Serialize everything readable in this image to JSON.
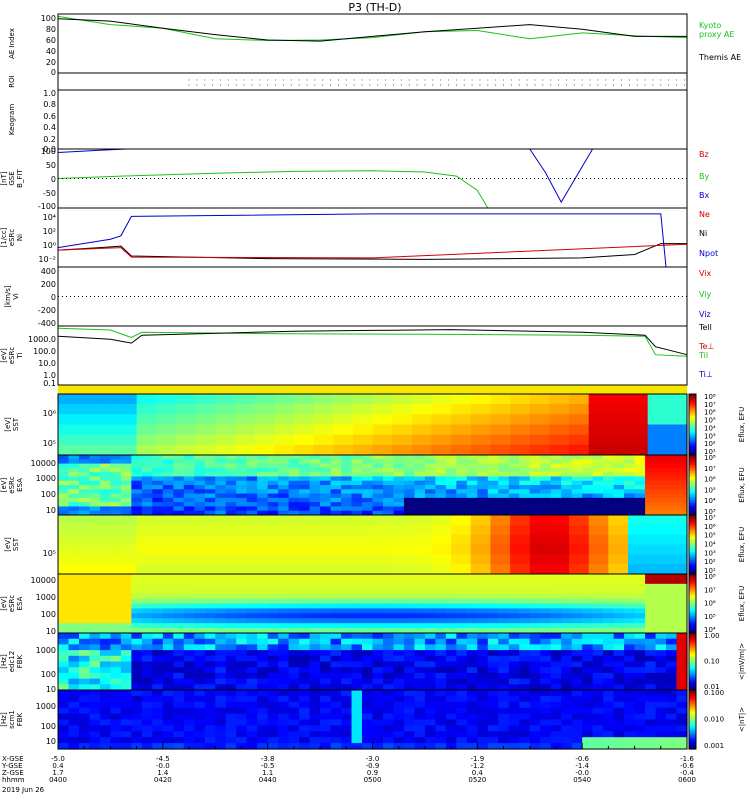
{
  "title": "P3 (TH-D)",
  "colors": {
    "black": "#000000",
    "red": "#d40000",
    "green": "#18c418",
    "blue": "#0000d0"
  },
  "time_axis": {
    "ticks": [
      "0400",
      "0420",
      "0440",
      "0500",
      "0520",
      "0540",
      "0600"
    ],
    "row_labels": [
      "X-GSE",
      "Y-GSE",
      "Z-GSE",
      "hhmm"
    ],
    "x_gse": [
      "-5.0",
      "-4.5",
      "-3.8",
      "-3.0",
      "-1.9",
      "-0.6",
      "-1.6"
    ],
    "y_gse": [
      "0.4",
      "-0.0",
      "-0.5",
      "-0.9",
      "-1.2",
      "-1.4",
      "-0.6"
    ],
    "z_gse": [
      "1.7",
      "1.4",
      "1.1",
      "0.9",
      "0.4",
      "-0.0",
      "-0.4"
    ],
    "date": "2019 Jun 26"
  },
  "panels": {
    "ae": {
      "ylabel": "AE Index",
      "ticks": [
        "100",
        "80",
        "60",
        "40",
        "20",
        "0"
      ],
      "right": [
        "Kyoto",
        "proxy AE",
        "Themis AE"
      ]
    },
    "roi": {
      "ylabel": "ROI"
    },
    "keo": {
      "ylabel": "Keogram",
      "ticks": [
        "1.0",
        "0.8",
        "0.6",
        "0.4",
        "0.2",
        "0.0"
      ]
    },
    "bfit": {
      "ylabel": "B_FIT",
      "units": "GSE",
      "unit2": "[nT]",
      "ticks": [
        "100",
        "50",
        "0",
        "-50",
        "-100"
      ],
      "right": [
        "Bz",
        "By",
        "Bx"
      ]
    },
    "ni": {
      "ylabel": "Ni",
      "sub": "eSRc",
      "units": "[1/cc]",
      "ticks": [
        "10⁴",
        "10²",
        "10⁰",
        "10⁻²"
      ],
      "right": [
        "Ne",
        "Ni",
        "Npot"
      ]
    },
    "vi": {
      "ylabel": "Vi",
      "units": "[km/s]",
      "ticks": [
        "400",
        "200",
        "0",
        "-200",
        "-400"
      ],
      "right": [
        "Vix",
        "Viy",
        "Viz"
      ]
    },
    "ti": {
      "ylabel": "Ti",
      "sub": "eSRc",
      "units": "[eV]",
      "ticks": [
        "1000.0",
        "100.0",
        "10.0",
        "1.0",
        "0.1"
      ],
      "right": [
        "Tell",
        "Te⊥",
        "Til",
        "Ti⊥"
      ]
    },
    "sst_e": {
      "ylabel": "SST",
      "units": "[eV]",
      "ticks": [
        "10⁶",
        "10⁵"
      ]
    },
    "esa_e": {
      "ylabel": "ESA",
      "sub": "eSRc",
      "units": "[eV]",
      "ticks": [
        "10000",
        "1000",
        "100",
        "10"
      ]
    },
    "sst_i": {
      "ylabel": "SST",
      "units": "[eV]",
      "ticks": [
        "10⁵"
      ]
    },
    "esa_i": {
      "ylabel": "ESA",
      "sub": "eSRc",
      "units": "[eV]",
      "ticks": [
        "10000",
        "1000",
        "100",
        "10"
      ]
    },
    "fbk_e": {
      "ylabel": "FBK",
      "sub": "edc12",
      "units": "[Hz]",
      "ticks": [
        "1000",
        "100",
        "10"
      ]
    },
    "fbk_b": {
      "ylabel": "FBK",
      "sub": "scm1",
      "units": "[Hz]",
      "ticks": [
        "1000",
        "100",
        "10"
      ]
    }
  },
  "colorbars": [
    {
      "ticks": [
        "10⁸",
        "10⁷",
        "10⁶",
        "10⁵",
        "10⁴",
        "10³",
        "10²",
        "10¹"
      ],
      "label": "Eflux, EFU"
    },
    {
      "ticks": [
        "10⁸",
        "10⁷",
        "10⁶",
        "10⁵",
        "10⁴",
        "10³"
      ],
      "label": "Eflux, EFU"
    },
    {
      "ticks": [
        "10⁷",
        "10⁶",
        "10⁵",
        "10⁴",
        "10³",
        "10²",
        "10¹"
      ],
      "label": "Eflux, EFU"
    },
    {
      "ticks": [
        "10⁸",
        "10⁷",
        "10⁶",
        "10⁵",
        "10⁴"
      ],
      "label": "Eflux, EFU"
    },
    {
      "ticks": [
        "1.00",
        "0.10",
        "0.01"
      ],
      "label": "<|mV/m|>"
    },
    {
      "ticks": [
        "0.100",
        "0.010",
        "0.001"
      ],
      "label": "<|nT|>"
    }
  ],
  "chart_data": {
    "type": "line",
    "title": "P3 (TH-D)",
    "x_range": [
      "04:00",
      "06:00"
    ],
    "ae_index": {
      "ylim": [
        0,
        100
      ],
      "x_min": [
        0,
        10,
        20,
        30,
        40,
        50,
        60,
        70,
        80,
        90,
        100,
        110,
        120
      ],
      "series": [
        {
          "name": "Kyoto proxy AE",
          "values": [
            96,
            82,
            76,
            58,
            55,
            56,
            60,
            70,
            72,
            58,
            68,
            63,
            60
          ]
        },
        {
          "name": "Themis AE",
          "values": [
            92,
            88,
            76,
            65,
            56,
            54,
            62,
            70,
            76,
            82,
            74,
            62,
            62
          ]
        }
      ]
    },
    "b_fit_gse_nT": {
      "ylim": [
        -100,
        100
      ],
      "series": [
        {
          "name": "By",
          "x_min": [
            0,
            15,
            30,
            45,
            60,
            70,
            76,
            80,
            82
          ],
          "values": [
            0,
            10,
            18,
            24,
            26,
            22,
            8,
            -40,
            -100
          ]
        },
        {
          "name": "Bx",
          "x_min": [
            0,
            4,
            8,
            13
          ],
          "values": [
            88,
            92,
            96,
            100
          ]
        },
        {
          "name": "Bx",
          "x_min": [
            90,
            93,
            96,
            99,
            102
          ],
          "values": [
            100,
            20,
            -80,
            10,
            100
          ]
        }
      ]
    },
    "density_cc": {
      "scale": "log",
      "ylim": [
        0.01,
        100000
      ],
      "series": [
        {
          "name": "Ni",
          "x_min": [
            0,
            8,
            12,
            14,
            40,
            70,
            100,
            110,
            115,
            120
          ],
          "values": [
            1,
            2,
            3,
            0.2,
            0.1,
            0.08,
            0.12,
            0.3,
            6,
            6
          ]
        },
        {
          "name": "Ne",
          "x_min": [
            0,
            12,
            14,
            60,
            120
          ],
          "values": [
            1,
            2,
            0.15,
            0.12,
            5
          ]
        },
        {
          "name": "Npot",
          "x_min": [
            0,
            10,
            12,
            14,
            60,
            115,
            116,
            118
          ],
          "values": [
            2,
            20,
            50,
            10000,
            20000,
            20000,
            0.01,
            0.01
          ]
        }
      ]
    },
    "temperature_eV": {
      "scale": "log",
      "ylim": [
        0.1,
        3000
      ],
      "series": [
        {
          "name": "Til",
          "x_min": [
            0,
            10,
            14,
            16,
            40,
            70,
            100,
            112,
            114,
            120
          ],
          "values": [
            2000,
            1500,
            400,
            1000,
            800,
            700,
            600,
            500,
            20,
            15
          ]
        },
        {
          "name": "Tell",
          "x_min": [
            0,
            10,
            14,
            16,
            45,
            75,
            100,
            112,
            114,
            120
          ],
          "values": [
            500,
            300,
            150,
            600,
            1200,
            1600,
            1000,
            600,
            80,
            20
          ]
        }
      ]
    }
  }
}
